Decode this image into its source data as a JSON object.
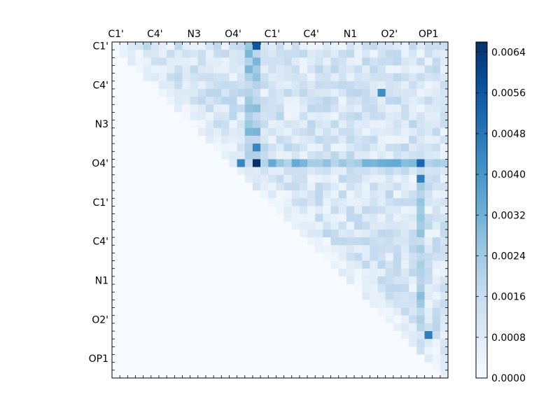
{
  "chart_data": {
    "type": "heatmap",
    "title": "",
    "xlabel": "",
    "ylabel": "",
    "matrix_size": 43,
    "matrix_shape": "upper-triangular",
    "x_tick_labels": [
      "C1'",
      "C4'",
      "N3",
      "O4'",
      "C1'",
      "C4'",
      "N1",
      "O2'",
      "OP1"
    ],
    "y_tick_labels": [
      "C1'",
      "C4'",
      "N3",
      "O4'",
      "C1'",
      "C4'",
      "N1",
      "O2'",
      "OP1"
    ],
    "label_every": 5,
    "colorbar": {
      "colormap": "Blues",
      "min": 0.0,
      "max": 0.0066,
      "ticks": [
        0.0,
        0.0008,
        0.0016,
        0.0024,
        0.0032,
        0.004,
        0.0048,
        0.0056,
        0.0064
      ],
      "tick_labels": [
        "0.0000",
        "0.0008",
        "0.0016",
        "0.0024",
        "0.0032",
        "0.0040",
        "0.0048",
        "0.0056",
        "0.0064"
      ]
    },
    "peak_cells": [
      {
        "row": 15,
        "col": 18,
        "value": 0.0066
      },
      {
        "row": 0,
        "col": 18,
        "value": 0.0056
      },
      {
        "row": 15,
        "col": 39,
        "value": 0.0052
      },
      {
        "row": 17,
        "col": 39,
        "value": 0.0046
      },
      {
        "row": 37,
        "col": 40,
        "value": 0.0046
      },
      {
        "row": 15,
        "col": 16,
        "value": 0.0044
      },
      {
        "row": 6,
        "col": 34,
        "value": 0.0042
      },
      {
        "row": 13,
        "col": 18,
        "value": 0.0044
      }
    ],
    "grid": false,
    "legend": "colorbar right"
  }
}
